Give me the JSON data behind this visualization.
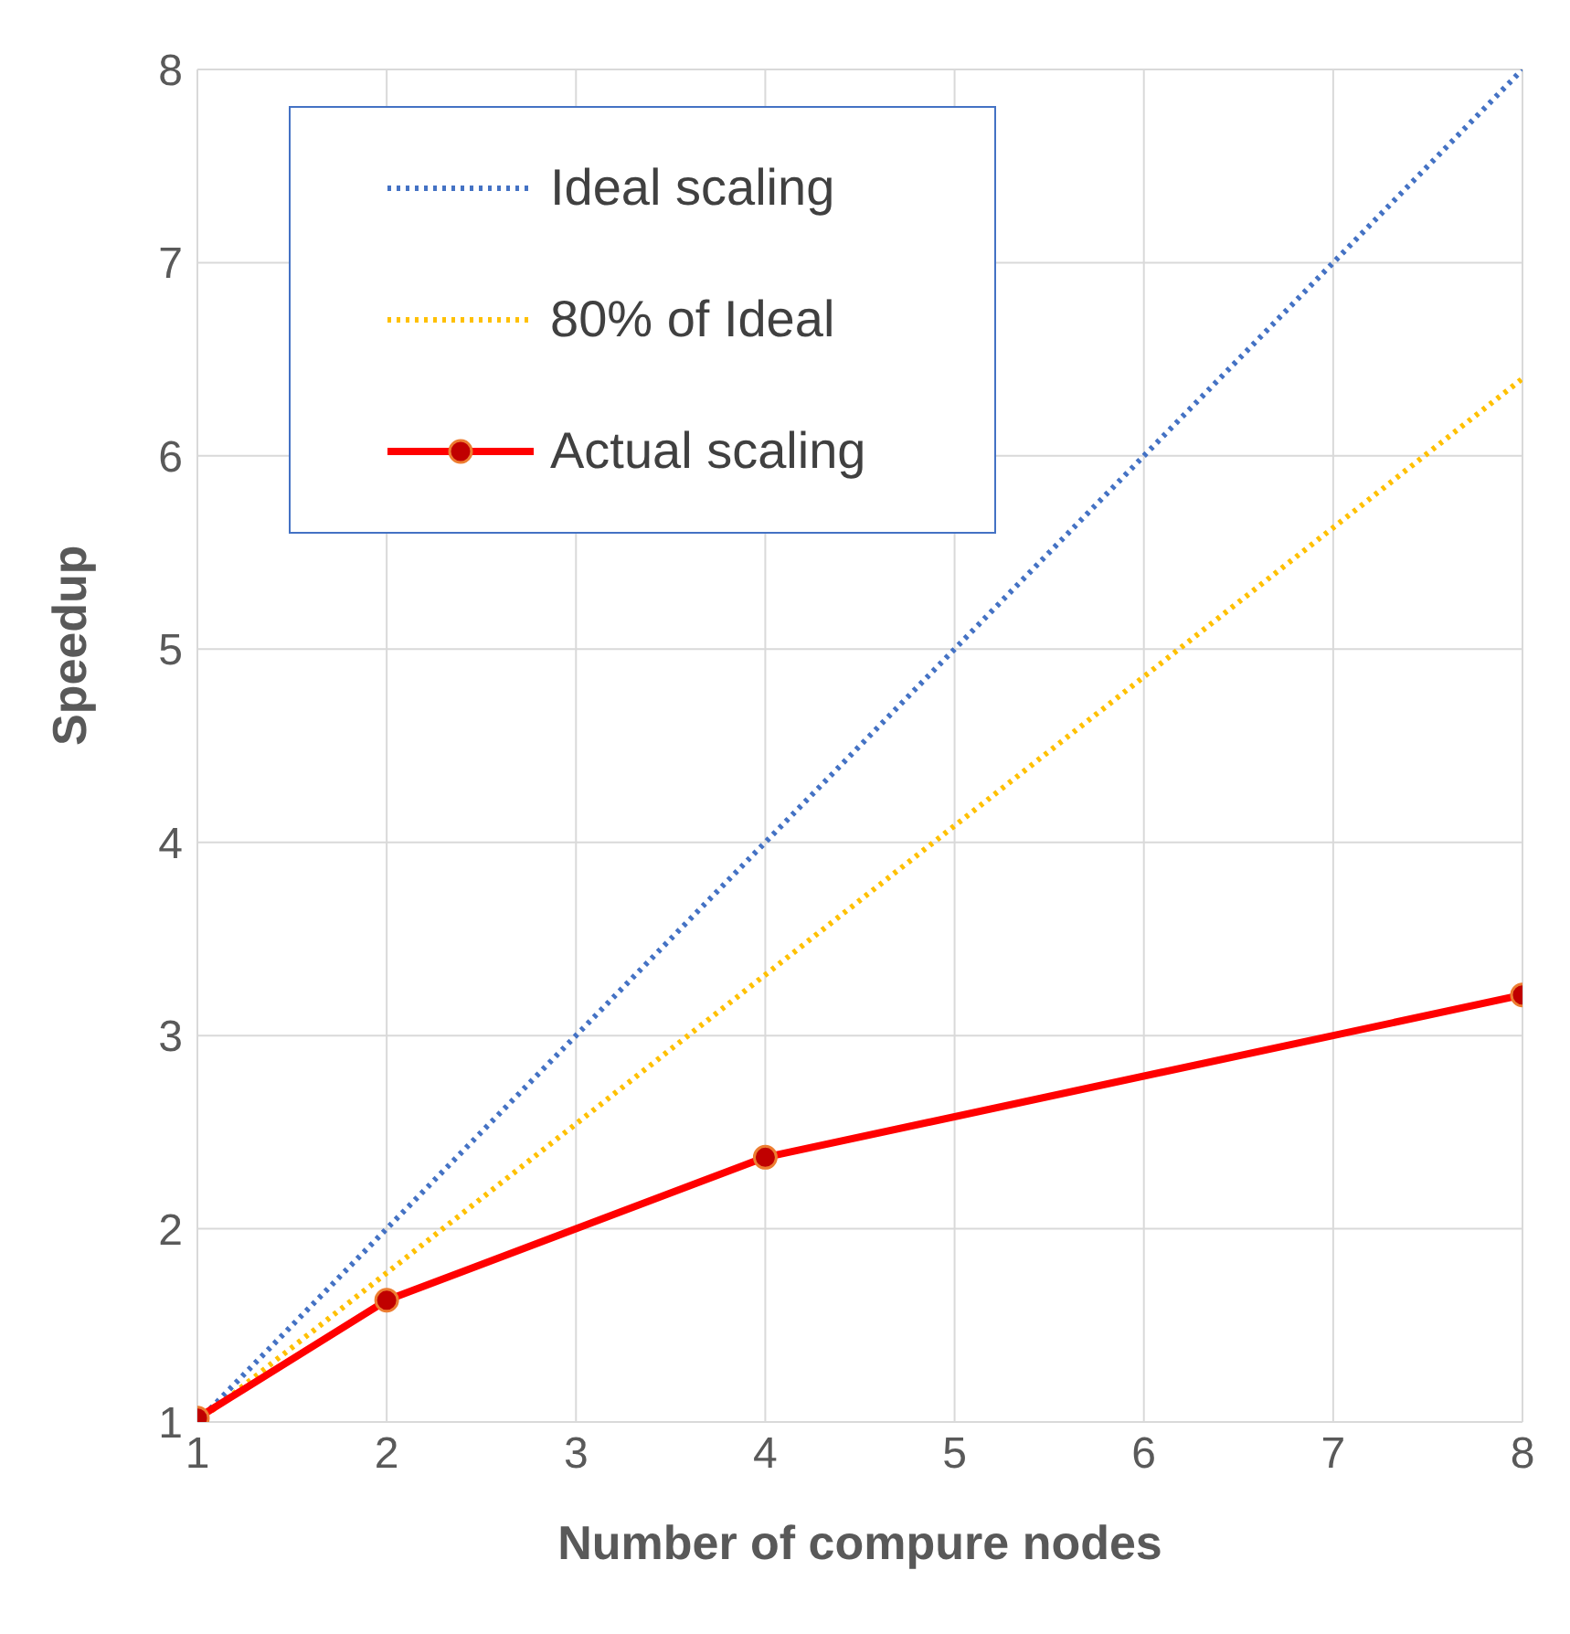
{
  "chart_data": {
    "type": "line",
    "xlabel": "Number of compure nodes",
    "ylabel": "Speedup",
    "xlim": [
      1,
      8
    ],
    "xticks": [
      1,
      2,
      3,
      4,
      5,
      6,
      7,
      8
    ],
    "ylim": [
      1,
      8
    ],
    "yticks": [
      1,
      2,
      3,
      4,
      5,
      6,
      7,
      8
    ],
    "grid": true,
    "legend": "top left",
    "series": [
      {
        "name": "Ideal scaling",
        "color": "#4472c4",
        "x": [
          1,
          8
        ],
        "values": [
          1,
          8
        ],
        "line_style": "dotted",
        "marker": "none"
      },
      {
        "name": "80% of Ideal",
        "color": "#ffc000",
        "x": [
          1,
          8
        ],
        "values": [
          1,
          6.4
        ],
        "line_style": "dotted",
        "marker": "none"
      },
      {
        "name": "Actual scaling",
        "color": "#ff0000",
        "x": [
          1,
          2,
          4,
          8
        ],
        "values": [
          1.02,
          1.63,
          2.37,
          3.21
        ],
        "line_style": "solid",
        "marker": "circle"
      }
    ]
  }
}
